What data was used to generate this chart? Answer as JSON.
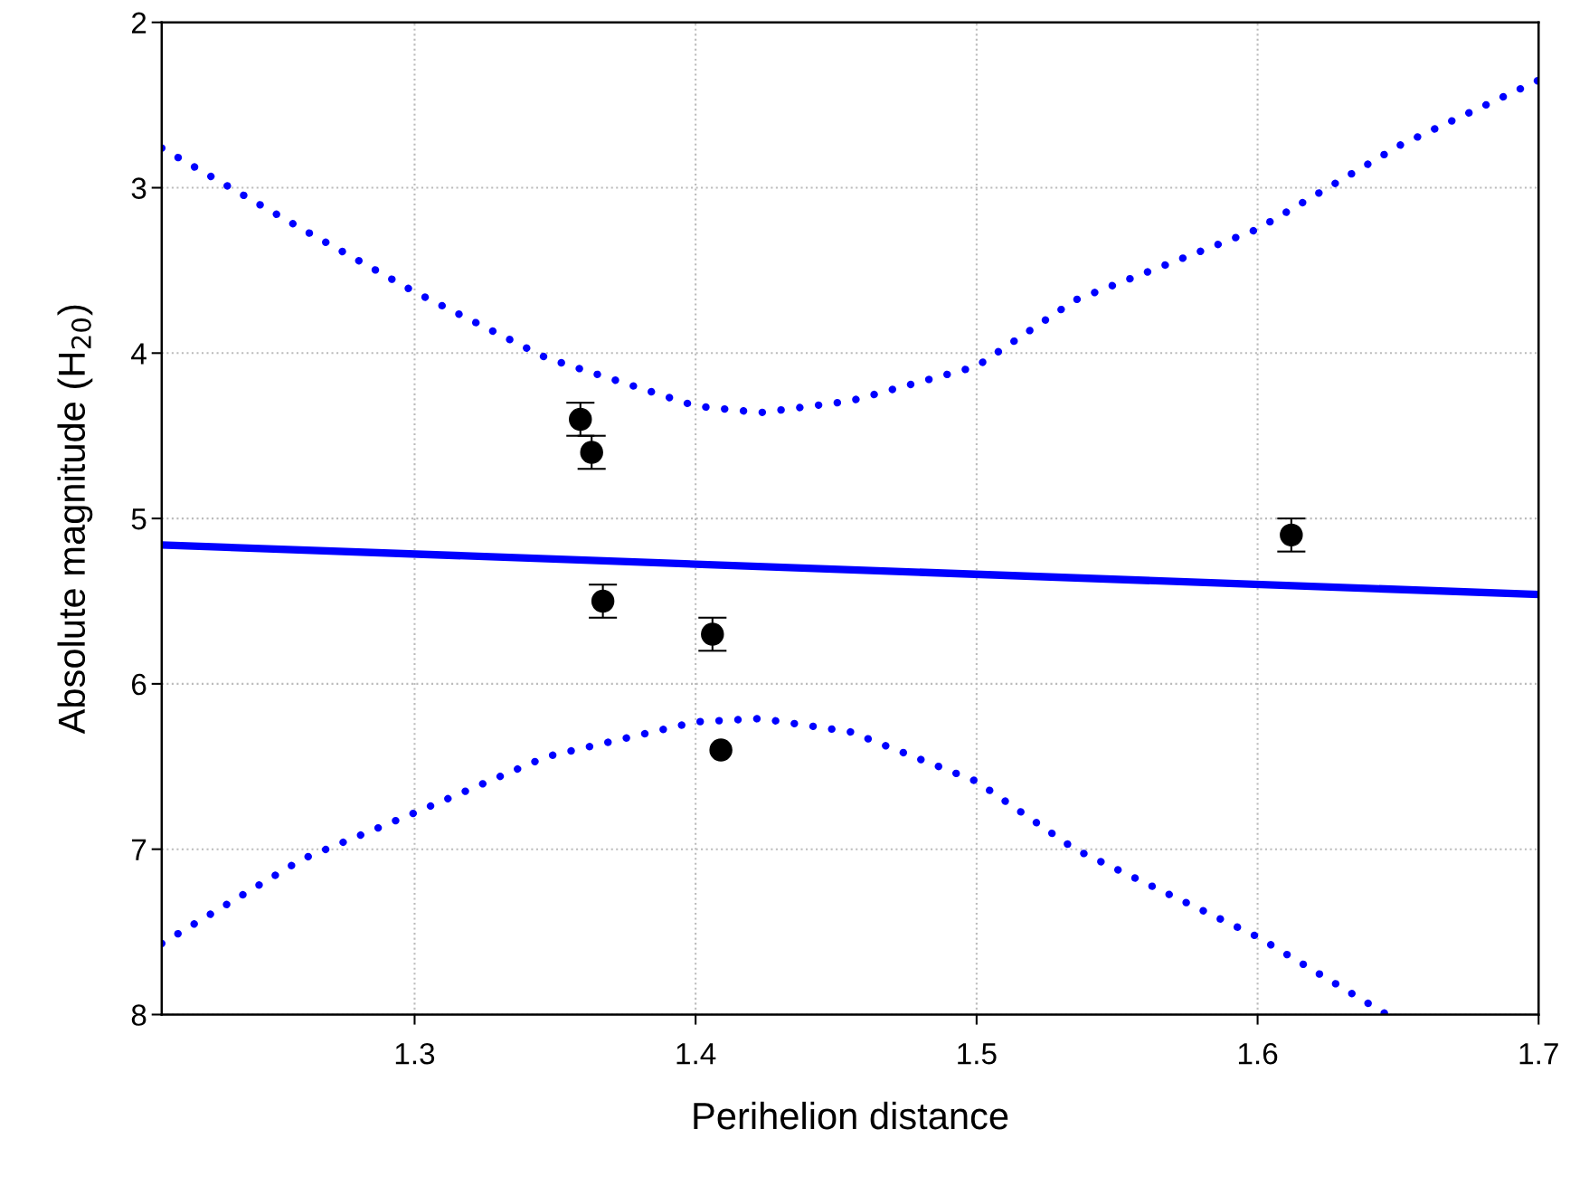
{
  "chart_data": {
    "type": "scatter",
    "xlabel": "Perihelion distance",
    "ylabel": "Absolute magnitude (H$_{20}$)",
    "xlim": [
      1.21,
      1.7
    ],
    "ylim": [
      8,
      2
    ],
    "xticks": [
      1.3,
      1.4,
      1.5,
      1.6,
      1.7
    ],
    "yticks": [
      2,
      3,
      4,
      5,
      6,
      7,
      8
    ],
    "grid": true,
    "series": [
      {
        "type": "scatter",
        "color": "#000000",
        "marker": "circle",
        "x": [
          1.359,
          1.363,
          1.367,
          1.406,
          1.409,
          1.612
        ],
        "values": [
          4.4,
          4.6,
          5.5,
          5.7,
          6.4,
          5.1
        ],
        "errors": [
          0.1,
          0.1,
          0.1,
          0.1,
          null,
          0.1
        ]
      },
      {
        "type": "line",
        "color": "#0000ff",
        "line_style": "solid",
        "x": [
          1.21,
          1.7
        ],
        "values": [
          5.16,
          5.46
        ]
      },
      {
        "type": "line",
        "color": "#0000ff",
        "line_style": "dotted",
        "x": [
          1.21,
          1.26,
          1.3,
          1.347,
          1.4,
          1.423,
          1.455,
          1.5,
          1.535,
          1.6,
          1.651,
          1.7
        ],
        "values": [
          2.76,
          3.25,
          3.63,
          4.03,
          4.32,
          4.36,
          4.29,
          4.08,
          3.68,
          3.25,
          2.74,
          2.35
        ]
      },
      {
        "type": "line",
        "color": "#0000ff",
        "line_style": "dotted",
        "x": [
          1.21,
          1.26,
          1.3,
          1.347,
          1.4,
          1.423,
          1.455,
          1.5,
          1.535,
          1.6,
          1.646
        ],
        "values": [
          7.57,
          7.06,
          6.78,
          6.44,
          6.23,
          6.21,
          6.29,
          6.59,
          7.0,
          7.53,
          8.0
        ]
      }
    ]
  }
}
